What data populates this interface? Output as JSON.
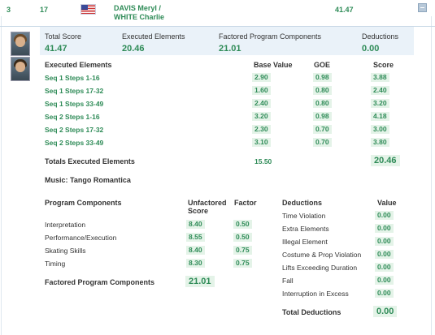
{
  "header": {
    "rank": "3",
    "start_no": "17",
    "name_line1": "DAVIS Meryl /",
    "name_line2": "WHITE Charlie",
    "total": "41.47"
  },
  "summary": {
    "total_score_label": "Total Score",
    "total_score": "41.47",
    "executed_label": "Executed Elements",
    "executed": "20.46",
    "factored_label": "Factored Program Components",
    "factored": "21.01",
    "deductions_label": "Deductions",
    "deductions": "0.00"
  },
  "elements": {
    "header_label": "Executed Elements",
    "base_label": "Base Value",
    "goe_label": "GOE",
    "score_label": "Score",
    "rows": [
      {
        "name": "Seq 1 Steps 1-16",
        "base": "2.90",
        "goe": "0.98",
        "score": "3.88"
      },
      {
        "name": "Seq 1 Steps 17-32",
        "base": "1.60",
        "goe": "0.80",
        "score": "2.40"
      },
      {
        "name": "Seq 1 Steps 33-49",
        "base": "2.40",
        "goe": "0.80",
        "score": "3.20"
      },
      {
        "name": "Seq 2 Steps 1-16",
        "base": "3.20",
        "goe": "0.98",
        "score": "4.18"
      },
      {
        "name": "Seq 2 Steps 17-32",
        "base": "2.30",
        "goe": "0.70",
        "score": "3.00"
      },
      {
        "name": "Seq 2 Steps 33-49",
        "base": "3.10",
        "goe": "0.70",
        "score": "3.80"
      }
    ],
    "totals_label": "Totals Executed Elements",
    "totals_base": "15.50",
    "totals_score": "20.46"
  },
  "music": "Music: Tango Romantica",
  "components": {
    "header_label": "Program Components",
    "unfactored_label_1": "Unfactored",
    "unfactored_label_2": "Score",
    "factor_label": "Factor",
    "rows": [
      {
        "name": "Interpretation",
        "score": "8.40",
        "factor": "0.50"
      },
      {
        "name": "Performance/Execution",
        "score": "8.55",
        "factor": "0.50"
      },
      {
        "name": "Skating Skills",
        "score": "8.40",
        "factor": "0.75"
      },
      {
        "name": "Timing",
        "score": "8.30",
        "factor": "0.75"
      }
    ],
    "factored_label": "Factored Program Components",
    "factored_total": "21.01"
  },
  "deductions": {
    "header_label": "Deductions",
    "value_label": "Value",
    "rows": [
      {
        "name": "Time Violation",
        "value": "0.00"
      },
      {
        "name": "Extra Elements",
        "value": "0.00"
      },
      {
        "name": "Illegal Element",
        "value": "0.00"
      },
      {
        "name": "Costume & Prop Violation",
        "value": "0.00"
      },
      {
        "name": "Lifts Exceeding Duration",
        "value": "0.00"
      },
      {
        "name": "Fall",
        "value": "0.00"
      },
      {
        "name": "Interruption in Excess",
        "value": "0.00"
      }
    ],
    "total_label": "Total Deductions",
    "total_value": "0.00"
  },
  "colors": {
    "accent_green": "#2e8b57",
    "pill_bg": "#e4f3e8",
    "summary_bg": "#eaf2f9"
  },
  "icons": {
    "flag": "usa-flag-icon",
    "collapse": "collapse-minus-icon"
  }
}
